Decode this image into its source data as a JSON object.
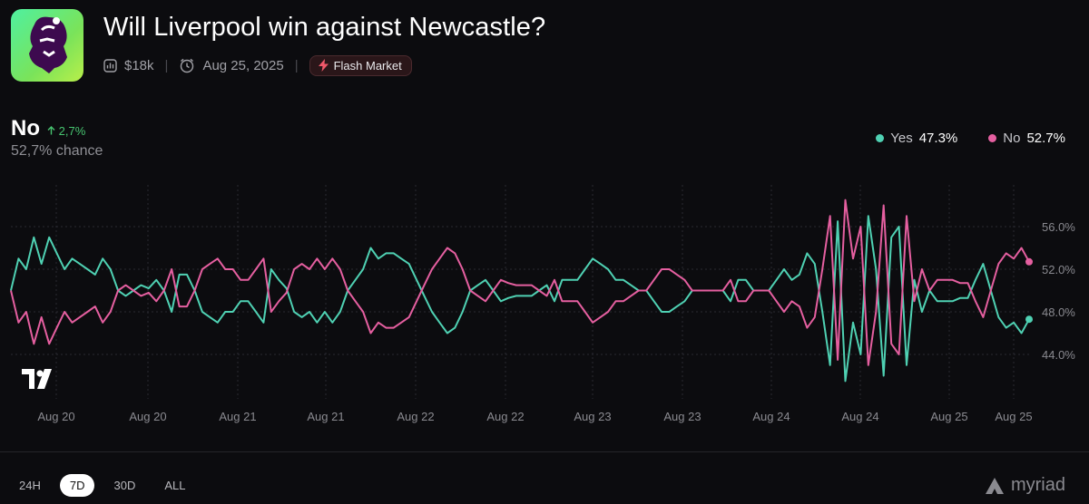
{
  "market": {
    "title": "Will Liverpool win against Newcastle?",
    "volume": "$18k",
    "date": "Aug 25, 2025",
    "badge": "Flash Market"
  },
  "outcome": {
    "name": "No",
    "change": "2,7%",
    "chance": "52,7% chance"
  },
  "legend": [
    {
      "label": "Yes",
      "value": "47.3%",
      "color": "#4fd1b3"
    },
    {
      "label": "No",
      "value": "52.7%",
      "color": "#e55fa0"
    }
  ],
  "tabs": [
    "24H",
    "7D",
    "30D",
    "ALL"
  ],
  "active_tab": "7D",
  "brand": "myriad",
  "chart_data": {
    "type": "line",
    "x_tick_labels": [
      "Aug 20",
      "Aug 20",
      "Aug 21",
      "Aug 21",
      "Aug 22",
      "Aug 22",
      "Aug 23",
      "Aug 23",
      "Aug 24",
      "Aug 24",
      "Aug 25",
      "Aug 25"
    ],
    "y_tick_labels": [
      "56.0%",
      "52.0%",
      "48.0%",
      "44.0%"
    ],
    "ylim": [
      40,
      60
    ],
    "series": [
      {
        "name": "Yes",
        "color": "#4fd1b3",
        "values": [
          50,
          53,
          52,
          55,
          52.5,
          55,
          53.5,
          52,
          53,
          52.5,
          52,
          51.5,
          53,
          52,
          50,
          49.5,
          50,
          50.5,
          50.2,
          51,
          50,
          48,
          51.5,
          51.5,
          50,
          48,
          47.5,
          47,
          48,
          48,
          49,
          49,
          48,
          47,
          52,
          51,
          50.2,
          48,
          47.5,
          48,
          47,
          48,
          47,
          48,
          50,
          51,
          52,
          54,
          53,
          53.5,
          53.5,
          53,
          52.5,
          51,
          49.5,
          48,
          47,
          46,
          46.5,
          48,
          50,
          50.5,
          51,
          50,
          49,
          49.3,
          49.5,
          49.5,
          49.5,
          50,
          50.5,
          49,
          51,
          51,
          51,
          52,
          53,
          52.5,
          52,
          51,
          51,
          50.5,
          50,
          50,
          49,
          48,
          48,
          48.5,
          49,
          50,
          50,
          50,
          50,
          50,
          49,
          51,
          51,
          50,
          50,
          50,
          51,
          52,
          51,
          51.5,
          53.5,
          52.5,
          48,
          43,
          56.5,
          41.5,
          47,
          44,
          57,
          52,
          42,
          55,
          56,
          43,
          51,
          48,
          50,
          49,
          49,
          49,
          49.3,
          49.3,
          51,
          52.5,
          50,
          47.5,
          46.5,
          47,
          46,
          47.3
        ]
      },
      {
        "name": "No",
        "color": "#e55fa0",
        "values": [
          50,
          47,
          48,
          45,
          47.5,
          45,
          46.5,
          48,
          47,
          47.5,
          48,
          48.5,
          47,
          48,
          50,
          50.5,
          50,
          49.5,
          49.8,
          49,
          50,
          52,
          48.5,
          48.5,
          50,
          52,
          52.5,
          53,
          52,
          52,
          51,
          51,
          52,
          53,
          48,
          49,
          49.8,
          52,
          52.5,
          52,
          53,
          52,
          53,
          52,
          50,
          49,
          48,
          46,
          47,
          46.5,
          46.5,
          47,
          47.5,
          49,
          50.5,
          52,
          53,
          54,
          53.5,
          52,
          50,
          49.5,
          49,
          50,
          51,
          50.7,
          50.5,
          50.5,
          50.5,
          50,
          49.5,
          51,
          49,
          49,
          49,
          48,
          47,
          47.5,
          48,
          49,
          49,
          49.5,
          50,
          50,
          51,
          52,
          52,
          51.5,
          51,
          50,
          50,
          50,
          50,
          50,
          51,
          49,
          49,
          50,
          50,
          50,
          49,
          48,
          49,
          48.5,
          46.5,
          47.5,
          52,
          57,
          43.5,
          58.5,
          53,
          56,
          43,
          48,
          58,
          45,
          44,
          57,
          49,
          52,
          50,
          51,
          51,
          51,
          50.7,
          50.7,
          49,
          47.5,
          50,
          52.5,
          53.5,
          53,
          54,
          52.7
        ]
      }
    ]
  }
}
